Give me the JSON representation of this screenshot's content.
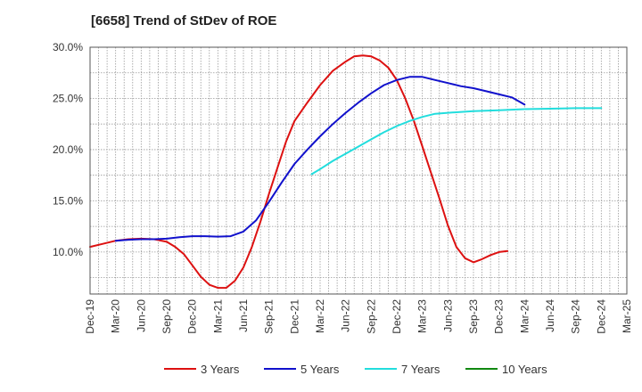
{
  "chart_data": {
    "type": "line",
    "title": "[6658]  Trend of StDev of ROE",
    "x_ticks": [
      "Dec-19",
      "Mar-20",
      "Jun-20",
      "Sep-20",
      "Dec-20",
      "Mar-21",
      "Jun-21",
      "Sep-21",
      "Dec-21",
      "Mar-22",
      "Jun-22",
      "Sep-22",
      "Dec-22",
      "Mar-23",
      "Jun-23",
      "Sep-23",
      "Dec-23",
      "Mar-24",
      "Jun-24",
      "Sep-24",
      "Dec-24",
      "Mar-25"
    ],
    "y_ticks": [
      "10.0%",
      "15.0%",
      "20.0%",
      "25.0%",
      "30.0%"
    ],
    "ylim": [
      5.9,
      30.0
    ],
    "grid": true,
    "legend_position": "bottom",
    "series": [
      {
        "name": "3 Years",
        "color": "#dd1111",
        "points": [
          [
            0,
            10.5
          ],
          [
            0.5,
            10.8
          ],
          [
            1,
            11.1
          ],
          [
            1.5,
            11.25
          ],
          [
            2,
            11.3
          ],
          [
            2.5,
            11.25
          ],
          [
            3,
            11.0
          ],
          [
            3.33,
            10.5
          ],
          [
            3.67,
            9.8
          ],
          [
            4,
            8.7
          ],
          [
            4.33,
            7.6
          ],
          [
            4.67,
            6.8
          ],
          [
            5,
            6.5
          ],
          [
            5.33,
            6.5
          ],
          [
            5.67,
            7.2
          ],
          [
            6,
            8.5
          ],
          [
            6.33,
            10.5
          ],
          [
            6.67,
            13.0
          ],
          [
            7,
            15.7
          ],
          [
            7.33,
            18.2
          ],
          [
            7.67,
            20.8
          ],
          [
            8,
            22.8
          ],
          [
            8.5,
            24.6
          ],
          [
            9,
            26.3
          ],
          [
            9.5,
            27.7
          ],
          [
            10,
            28.6
          ],
          [
            10.33,
            29.1
          ],
          [
            10.67,
            29.2
          ],
          [
            11,
            29.1
          ],
          [
            11.33,
            28.7
          ],
          [
            11.67,
            28.0
          ],
          [
            12,
            26.8
          ],
          [
            12.33,
            25.0
          ],
          [
            12.67,
            22.8
          ],
          [
            13,
            20.3
          ],
          [
            13.33,
            17.8
          ],
          [
            13.67,
            15.2
          ],
          [
            14,
            12.6
          ],
          [
            14.33,
            10.5
          ],
          [
            14.67,
            9.4
          ],
          [
            15,
            9.0
          ],
          [
            15.33,
            9.3
          ],
          [
            15.67,
            9.7
          ],
          [
            16,
            10.0
          ],
          [
            16.33,
            10.1
          ]
        ]
      },
      {
        "name": "5 Years",
        "color": "#1111cc",
        "points": [
          [
            1,
            11.1
          ],
          [
            1.5,
            11.2
          ],
          [
            2,
            11.25
          ],
          [
            2.5,
            11.25
          ],
          [
            3,
            11.3
          ],
          [
            3.5,
            11.45
          ],
          [
            4,
            11.55
          ],
          [
            4.5,
            11.55
          ],
          [
            5,
            11.5
          ],
          [
            5.5,
            11.55
          ],
          [
            6,
            12.0
          ],
          [
            6.5,
            13.1
          ],
          [
            7,
            14.9
          ],
          [
            7.5,
            16.8
          ],
          [
            8,
            18.6
          ],
          [
            8.5,
            20.0
          ],
          [
            9,
            21.3
          ],
          [
            9.5,
            22.5
          ],
          [
            10,
            23.6
          ],
          [
            10.5,
            24.6
          ],
          [
            11,
            25.5
          ],
          [
            11.5,
            26.3
          ],
          [
            12,
            26.8
          ],
          [
            12.5,
            27.1
          ],
          [
            13,
            27.1
          ],
          [
            13.5,
            26.8
          ],
          [
            14,
            26.5
          ],
          [
            14.5,
            26.2
          ],
          [
            15,
            26.0
          ],
          [
            15.5,
            25.7
          ],
          [
            16,
            25.4
          ],
          [
            16.5,
            25.1
          ],
          [
            17,
            24.4
          ]
        ]
      },
      {
        "name": "7 Years",
        "color": "#22dddd",
        "points": [
          [
            8.67,
            17.6
          ],
          [
            9,
            18.1
          ],
          [
            9.5,
            18.9
          ],
          [
            10,
            19.6
          ],
          [
            10.5,
            20.3
          ],
          [
            11,
            21.0
          ],
          [
            11.5,
            21.7
          ],
          [
            12,
            22.3
          ],
          [
            12.5,
            22.8
          ],
          [
            13,
            23.2
          ],
          [
            13.5,
            23.5
          ],
          [
            14,
            23.6
          ],
          [
            15,
            23.75
          ],
          [
            16,
            23.85
          ],
          [
            17,
            23.95
          ],
          [
            18,
            24.0
          ],
          [
            19,
            24.05
          ],
          [
            20,
            24.05
          ]
        ]
      },
      {
        "name": "10 Years",
        "color": "#118811",
        "points": []
      }
    ]
  }
}
